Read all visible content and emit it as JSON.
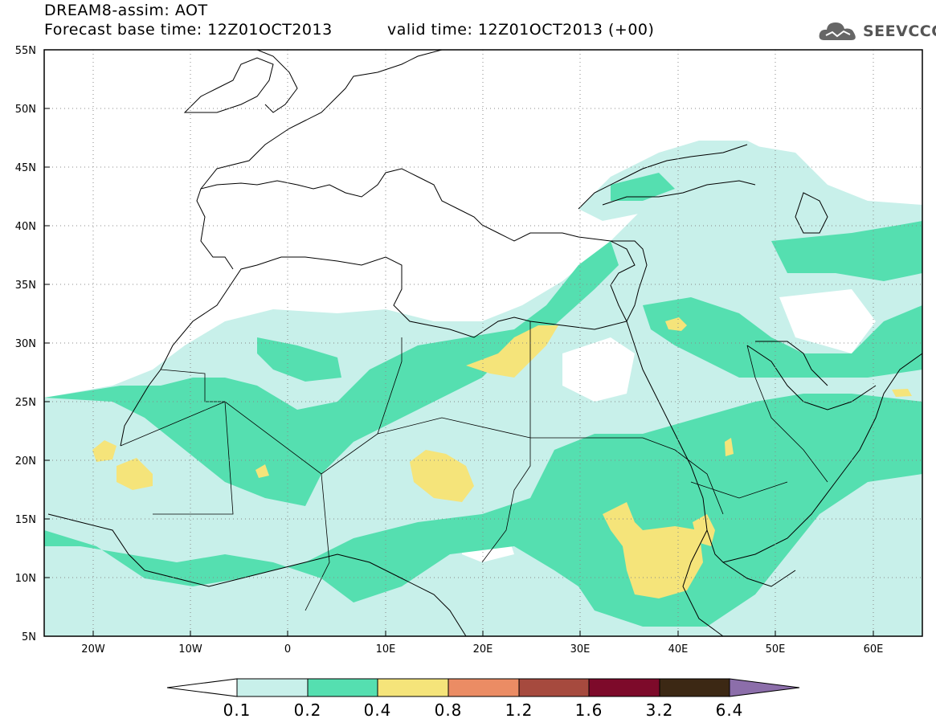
{
  "header": {
    "title_line1": "DREAM8-assim: AOT",
    "title_line2a": "Forecast base time: 12Z01OCT2013",
    "title_line2b": "valid time: 12Z01OCT2013 (+00)",
    "logo_text": "SEEVCCC",
    "logo_icon": "cloud-logo-icon"
  },
  "map": {
    "lat_labels": [
      "55N",
      "50N",
      "45N",
      "40N",
      "35N",
      "30N",
      "25N",
      "20N",
      "15N",
      "10N",
      "5N"
    ],
    "lon_labels": [
      "20W",
      "10W",
      "0",
      "10E",
      "20E",
      "30E",
      "40E",
      "50E",
      "60E"
    ],
    "extent": {
      "lon_min": -25,
      "lon_max": 65,
      "lat_min": 5,
      "lat_max": 55
    },
    "grid": "dotted",
    "field": "AOT (aerosol optical thickness)"
  },
  "colorbar": {
    "labels": [
      "0.1",
      "0.2",
      "0.4",
      "0.8",
      "1.2",
      "1.6",
      "3.2",
      "6.4"
    ],
    "colors": [
      "#ffffff",
      "#c8f0ea",
      "#55dfb0",
      "#f5e47a",
      "#eb8c64",
      "#a64a3e",
      "#7d0a2a",
      "#3c2814",
      "#8c6eaa"
    ]
  }
}
